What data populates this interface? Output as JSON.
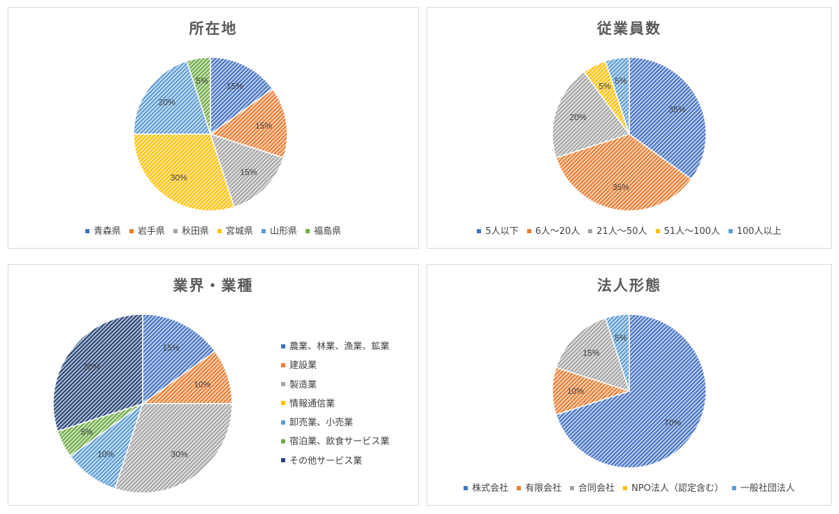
{
  "chart_data": [
    {
      "type": "pie",
      "title": "所在地",
      "categories": [
        "青森県",
        "岩手県",
        "秋田県",
        "宮城県",
        "山形県",
        "福島県"
      ],
      "values": [
        15,
        15,
        15,
        30,
        20,
        5
      ],
      "value_labels": [
        "15%",
        "15%",
        "15%",
        "30%",
        "20%",
        "5%"
      ],
      "colors": [
        "#4472c4",
        "#ed7d31",
        "#a5a5a5",
        "#ffc000",
        "#5b9bd5",
        "#70ad47"
      ],
      "fill": "hatched",
      "legend": "bottom"
    },
    {
      "type": "pie",
      "title": "従業員数",
      "categories": [
        "5人以下",
        "6人～20人",
        "21人～50人",
        "51人～100人",
        "100人以上"
      ],
      "values": [
        35,
        35,
        20,
        5,
        5
      ],
      "value_labels": [
        "35%",
        "35%",
        "20%",
        "5%",
        "5%"
      ],
      "colors": [
        "#4472c4",
        "#ed7d31",
        "#a5a5a5",
        "#ffc000",
        "#5b9bd5"
      ],
      "fill": "hatched",
      "legend": "bottom"
    },
    {
      "type": "pie",
      "title": "業界・業種",
      "categories": [
        "農業、林業、漁業、鉱業",
        "建設業",
        "製造業",
        "情報通信業",
        "卸売業、小売業",
        "宿泊業、飲食サービス業",
        "その他サービス業"
      ],
      "values": [
        15,
        10,
        30,
        0,
        10,
        5,
        30
      ],
      "value_labels": [
        "15%",
        "10%",
        "30%",
        "",
        "10%",
        "5%",
        "30%"
      ],
      "colors": [
        "#4472c4",
        "#ed7d31",
        "#a5a5a5",
        "#ffc000",
        "#5b9bd5",
        "#70ad47",
        "#264478"
      ],
      "fill": "hatched",
      "legend": "right"
    },
    {
      "type": "pie",
      "title": "法人形態",
      "categories": [
        "株式会社",
        "有限会社",
        "合同会社",
        "NPO法人（認定含む）",
        "一般社団法人"
      ],
      "values": [
        70,
        10,
        15,
        0,
        5
      ],
      "value_labels": [
        "70%",
        "10%",
        "15%",
        "",
        "5%"
      ],
      "colors": [
        "#4472c4",
        "#ed7d31",
        "#a5a5a5",
        "#ffc000",
        "#5b9bd5"
      ],
      "fill": "hatched",
      "legend": "bottom"
    }
  ]
}
